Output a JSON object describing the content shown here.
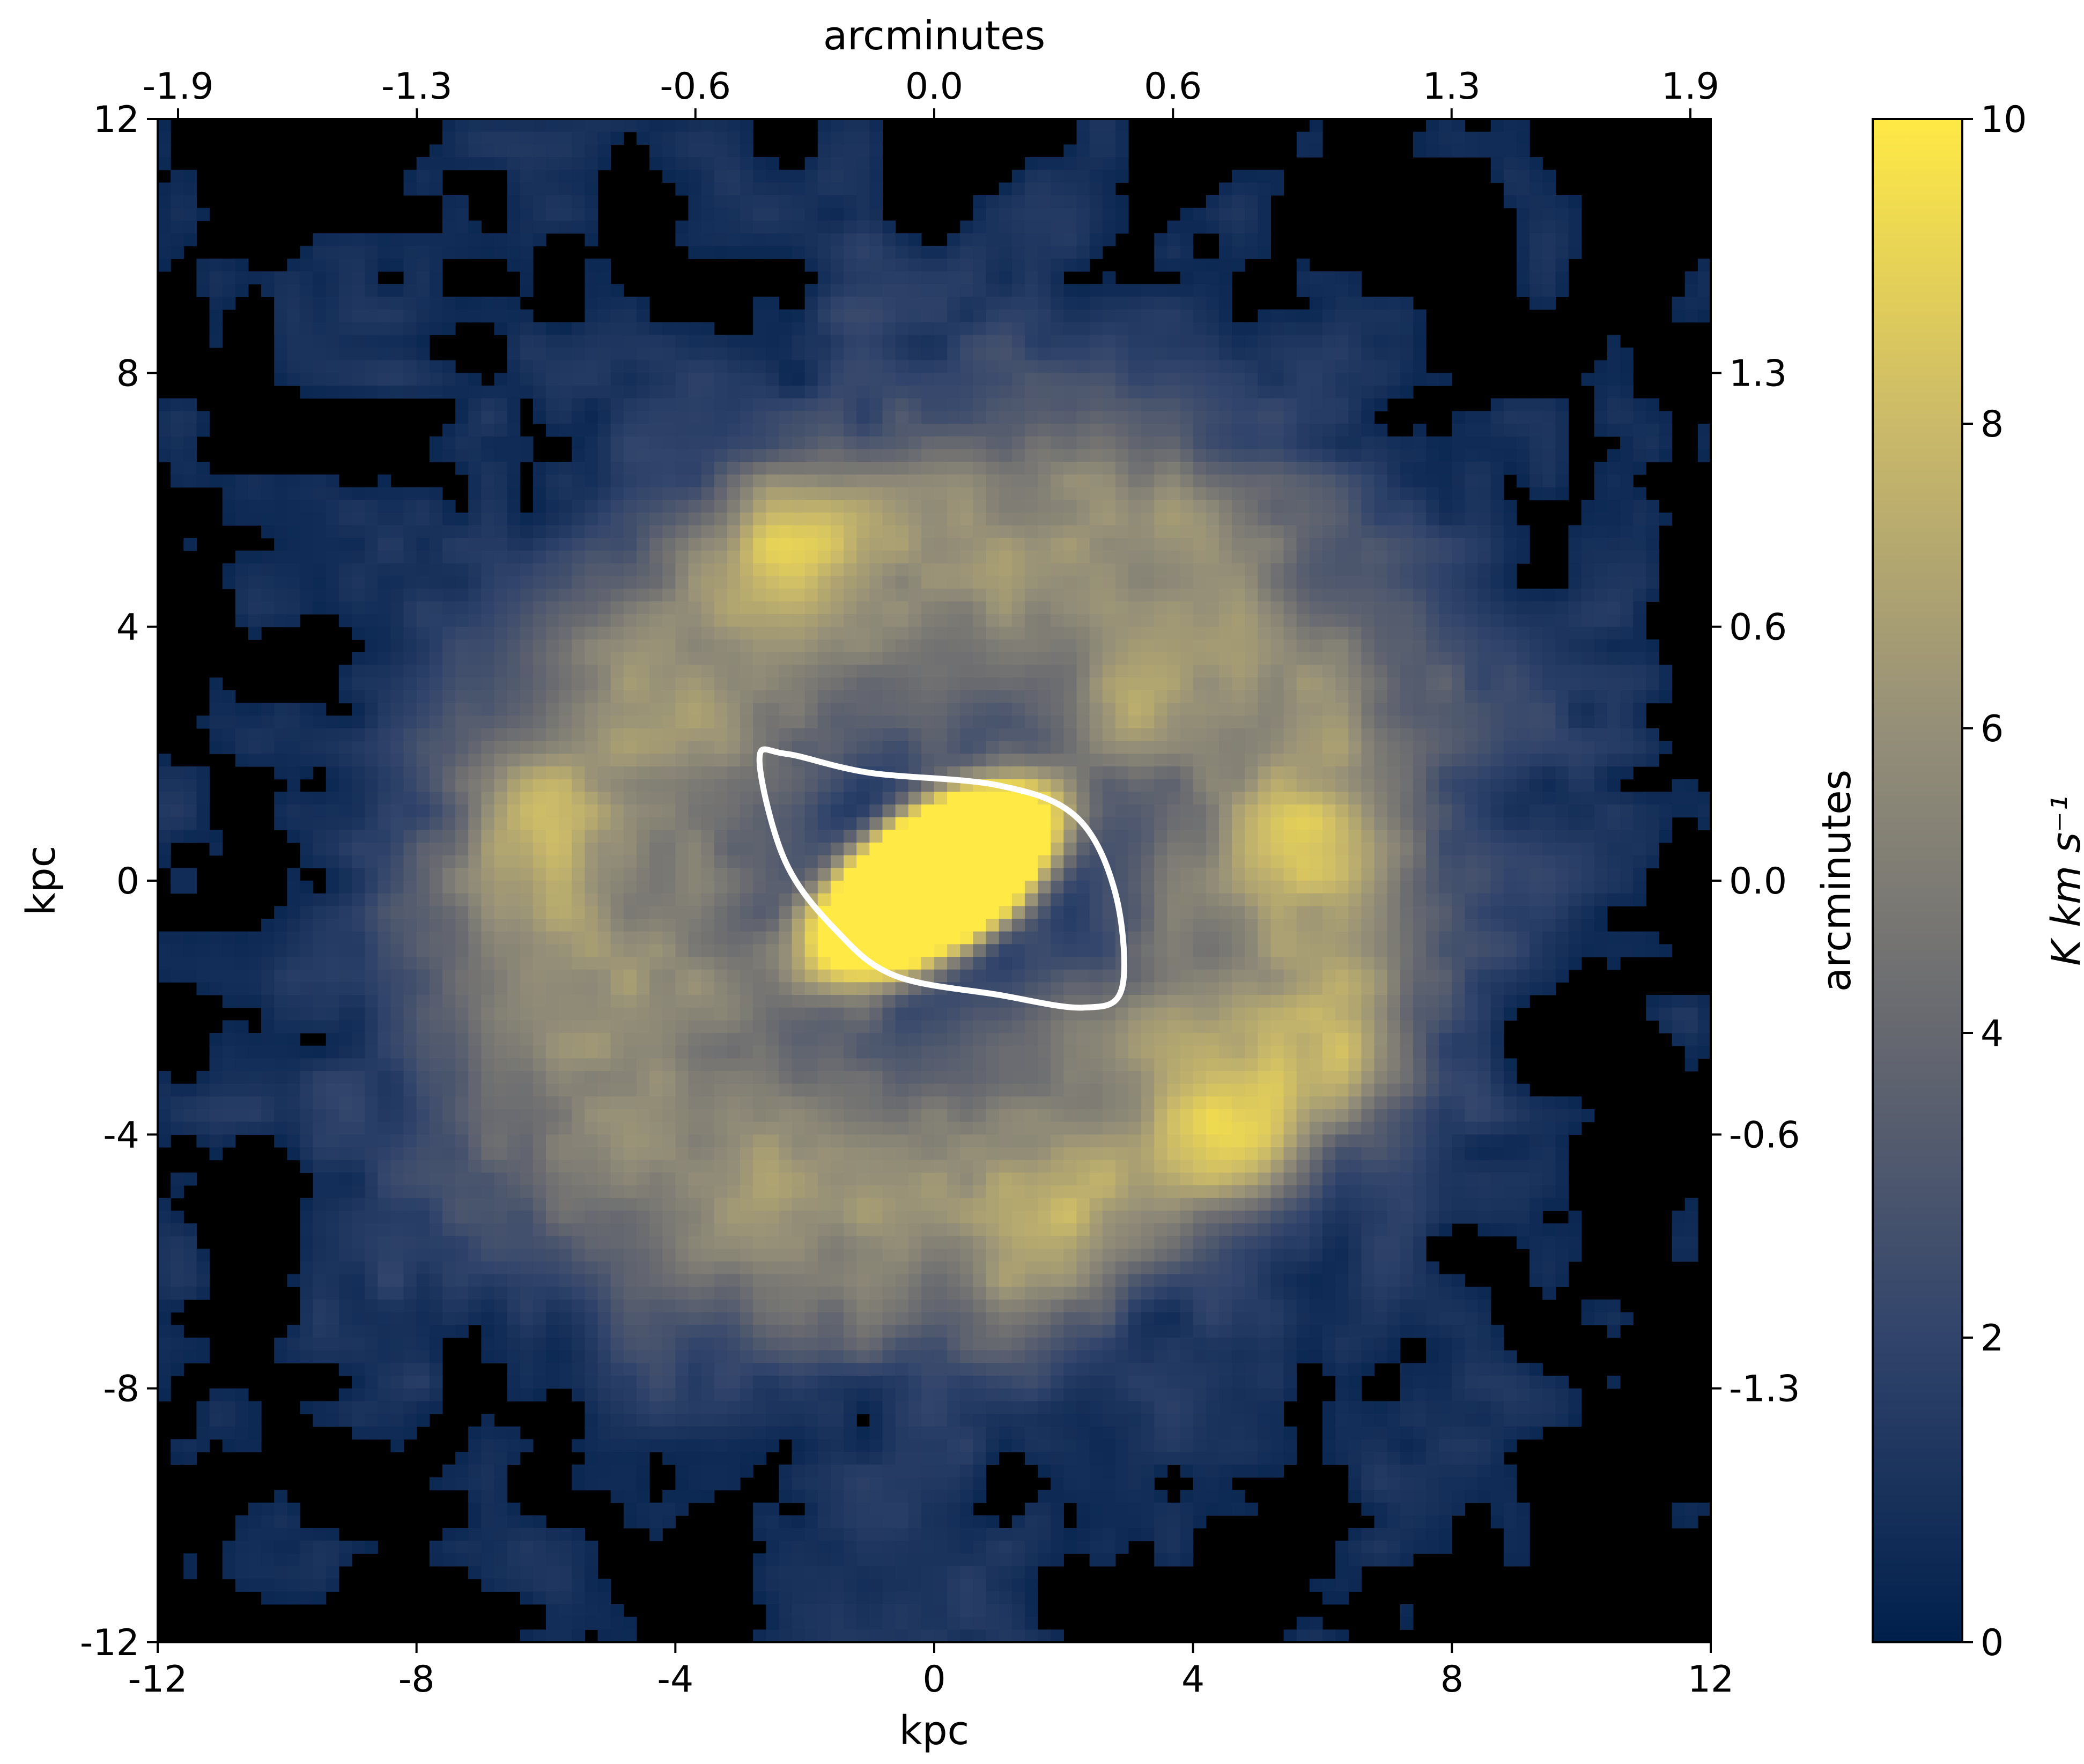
{
  "chart_data": {
    "type": "heatmap",
    "title": "",
    "xlabel": "kpc",
    "ylabel": "kpc",
    "top_xlabel": "arcminutes",
    "right_ylabel": "arcminutes",
    "xlim": [
      -12,
      12
    ],
    "ylim": [
      -12,
      12
    ],
    "x_ticks": [
      "-12",
      "-8",
      "-4",
      "0",
      "4",
      "8",
      "12"
    ],
    "y_ticks": [
      "12",
      "8",
      "4",
      "0",
      "-4",
      "-8",
      "-12"
    ],
    "top_ticks": [
      "-1.9",
      "-1.3",
      "-0.6",
      "0.0",
      "0.6",
      "1.3",
      "1.9"
    ],
    "right_ticks": [
      "1.3",
      "0.6",
      "0.0",
      "-0.6",
      "-1.3"
    ],
    "colorbar": {
      "label": "K km s⁻¹",
      "range": [
        0,
        10
      ],
      "ticks": [
        "10",
        "8",
        "6",
        "4",
        "2",
        "0"
      ],
      "colormap": "cividis",
      "colors": [
        "#00204c",
        "#31446b",
        "#666870",
        "#958f78",
        "#cbba69",
        "#ffe945"
      ]
    },
    "masked_color": "#000000",
    "grid": false,
    "features": [
      {
        "kind": "core",
        "x": 0.0,
        "y": 0.0,
        "peak": 10
      },
      {
        "kind": "ring_clump",
        "x": 4.8,
        "y": -4.1,
        "peak": 8.6
      },
      {
        "kind": "ring_clump",
        "x": 6.4,
        "y": -2.6,
        "peak": 8.3
      },
      {
        "kind": "ring_clump",
        "x": 5.8,
        "y": 0.6,
        "peak": 7.6
      },
      {
        "kind": "ring_clump",
        "x": 2.9,
        "y": 2.6,
        "peak": 7.3
      },
      {
        "kind": "ring_clump",
        "x": -2.3,
        "y": 5.4,
        "peak": 7.0
      },
      {
        "kind": "ring_clump",
        "x": -6.2,
        "y": 1.2,
        "peak": 6.6
      },
      {
        "kind": "ring_clump",
        "x": -3.4,
        "y": -1.7,
        "peak": 6.4
      },
      {
        "kind": "ring_clump",
        "x": 1.9,
        "y": -5.8,
        "peak": 6.6
      }
    ],
    "contour": {
      "color": "#ffffff",
      "points": [
        [
          -2.7,
          1.9
        ],
        [
          -2.3,
          2.0
        ],
        [
          -1.0,
          1.7
        ],
        [
          1.0,
          1.5
        ],
        [
          2.2,
          1.0
        ],
        [
          2.8,
          -0.2
        ],
        [
          2.9,
          -1.7
        ],
        [
          2.3,
          -2.0
        ],
        [
          1.0,
          -1.8
        ],
        [
          -0.6,
          -1.5
        ],
        [
          -1.5,
          -0.8
        ],
        [
          -2.3,
          0.3
        ]
      ]
    }
  }
}
